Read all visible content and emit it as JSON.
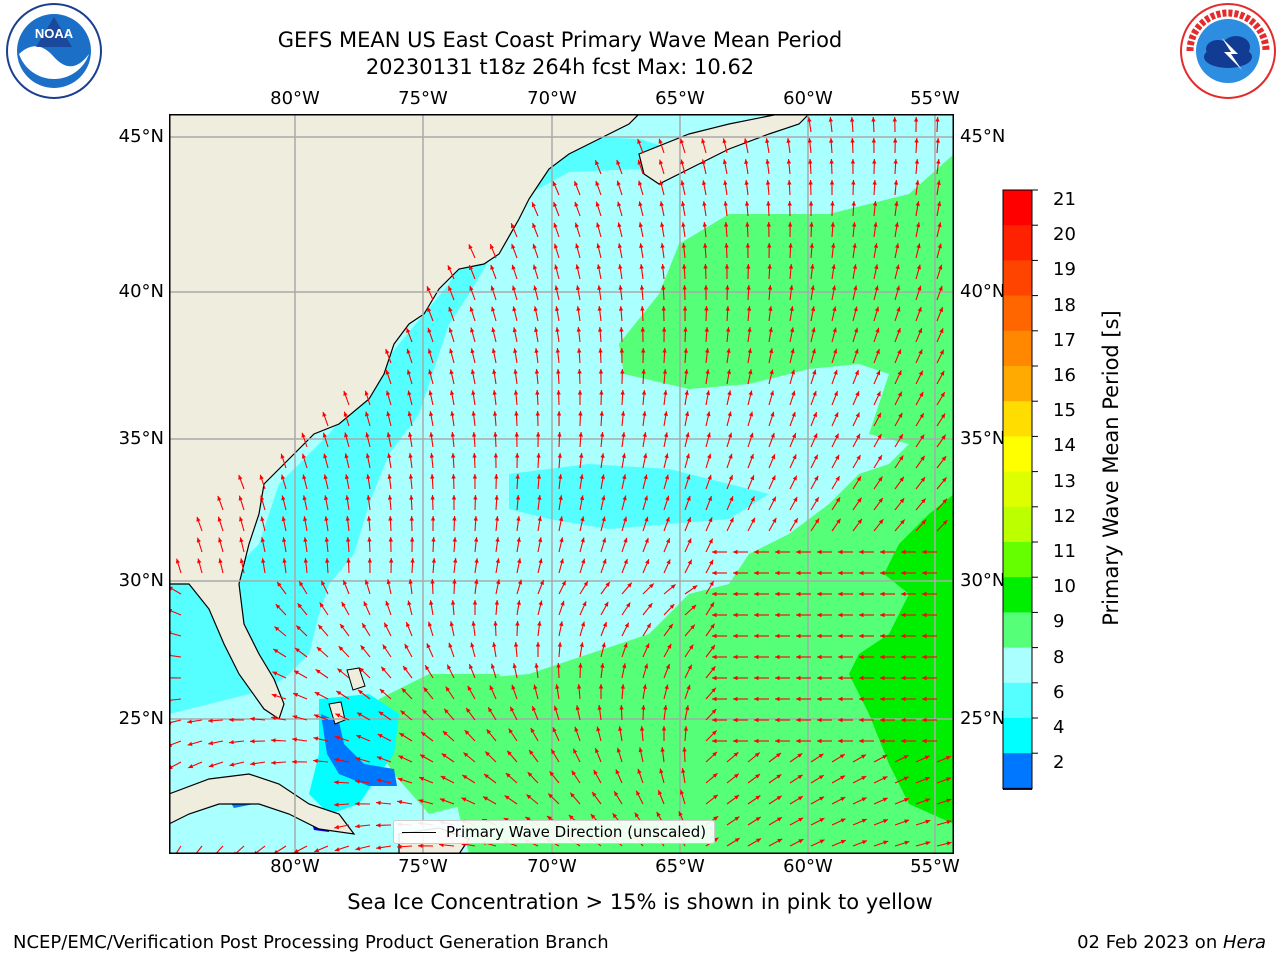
{
  "header": {
    "title_line1": "GEFS MEAN US East Coast Primary Wave Mean Period",
    "title_line2": "20230131 t18z 264h fcst   Max: 10.62"
  },
  "logos": {
    "left": {
      "name": "noaa-logo",
      "text": "NOAA",
      "ring_text": "NATIONAL OCEANIC AND ATMOSPHERIC ADMINISTRATION · U.S. DEPARTMENT OF COMMERCE"
    },
    "right": {
      "name": "nws-logo",
      "ring_text": "NATIONAL WEATHER SERVICE"
    }
  },
  "map": {
    "lon_ticks": [
      "80°W",
      "75°W",
      "70°W",
      "65°W",
      "60°W",
      "55°W"
    ],
    "lat_ticks": [
      "45°N",
      "40°N",
      "35°N",
      "30°N",
      "25°N"
    ],
    "legend_label": "Primary Wave Direction (unscaled)",
    "colors": {
      "land": "#efedde",
      "coast": "#000000",
      "grid": "#aaaaaa",
      "arrow": "#ff0000"
    }
  },
  "colorbar": {
    "title": "Primary Wave Mean Period [s]",
    "levels": [
      "21",
      "20",
      "19",
      "18",
      "17",
      "16",
      "15",
      "14",
      "13",
      "12",
      "11",
      "10",
      "9",
      "8",
      "6",
      "4",
      "2"
    ],
    "colors": [
      "#ff0000",
      "#ff2200",
      "#ff4400",
      "#ff6600",
      "#ff8800",
      "#ffaa00",
      "#ffdd00",
      "#ffff00",
      "#ddff00",
      "#bbff00",
      "#66ff00",
      "#00ee00",
      "#55ff77",
      "#aaffff",
      "#55ffff",
      "#00ffff",
      "#0077ff"
    ],
    "under_color": "#0000ff"
  },
  "chart_data": {
    "type": "heatmap",
    "title": "GEFS MEAN US East Coast Primary Wave Mean Period",
    "subtitle": "20230131 t18z 264h fcst   Max: 10.62",
    "variable": "Primary Wave Mean Period [s]",
    "max": 10.62,
    "x_range": [
      "85°W",
      "54°W"
    ],
    "y_range": [
      "20.5°N",
      "46°N"
    ],
    "colorbar_levels": [
      2,
      4,
      6,
      8,
      9,
      10,
      11,
      12,
      13,
      14,
      15,
      16,
      17,
      18,
      19,
      20,
      21
    ]
  },
  "footer": {
    "note": "Sea Ice Concentration > 15% is shown in pink to yellow",
    "left": "NCEP/EMC/Verification Post Processing Product Generation Branch",
    "right_date": "02 Feb 2023 on ",
    "right_host": "Hera"
  }
}
